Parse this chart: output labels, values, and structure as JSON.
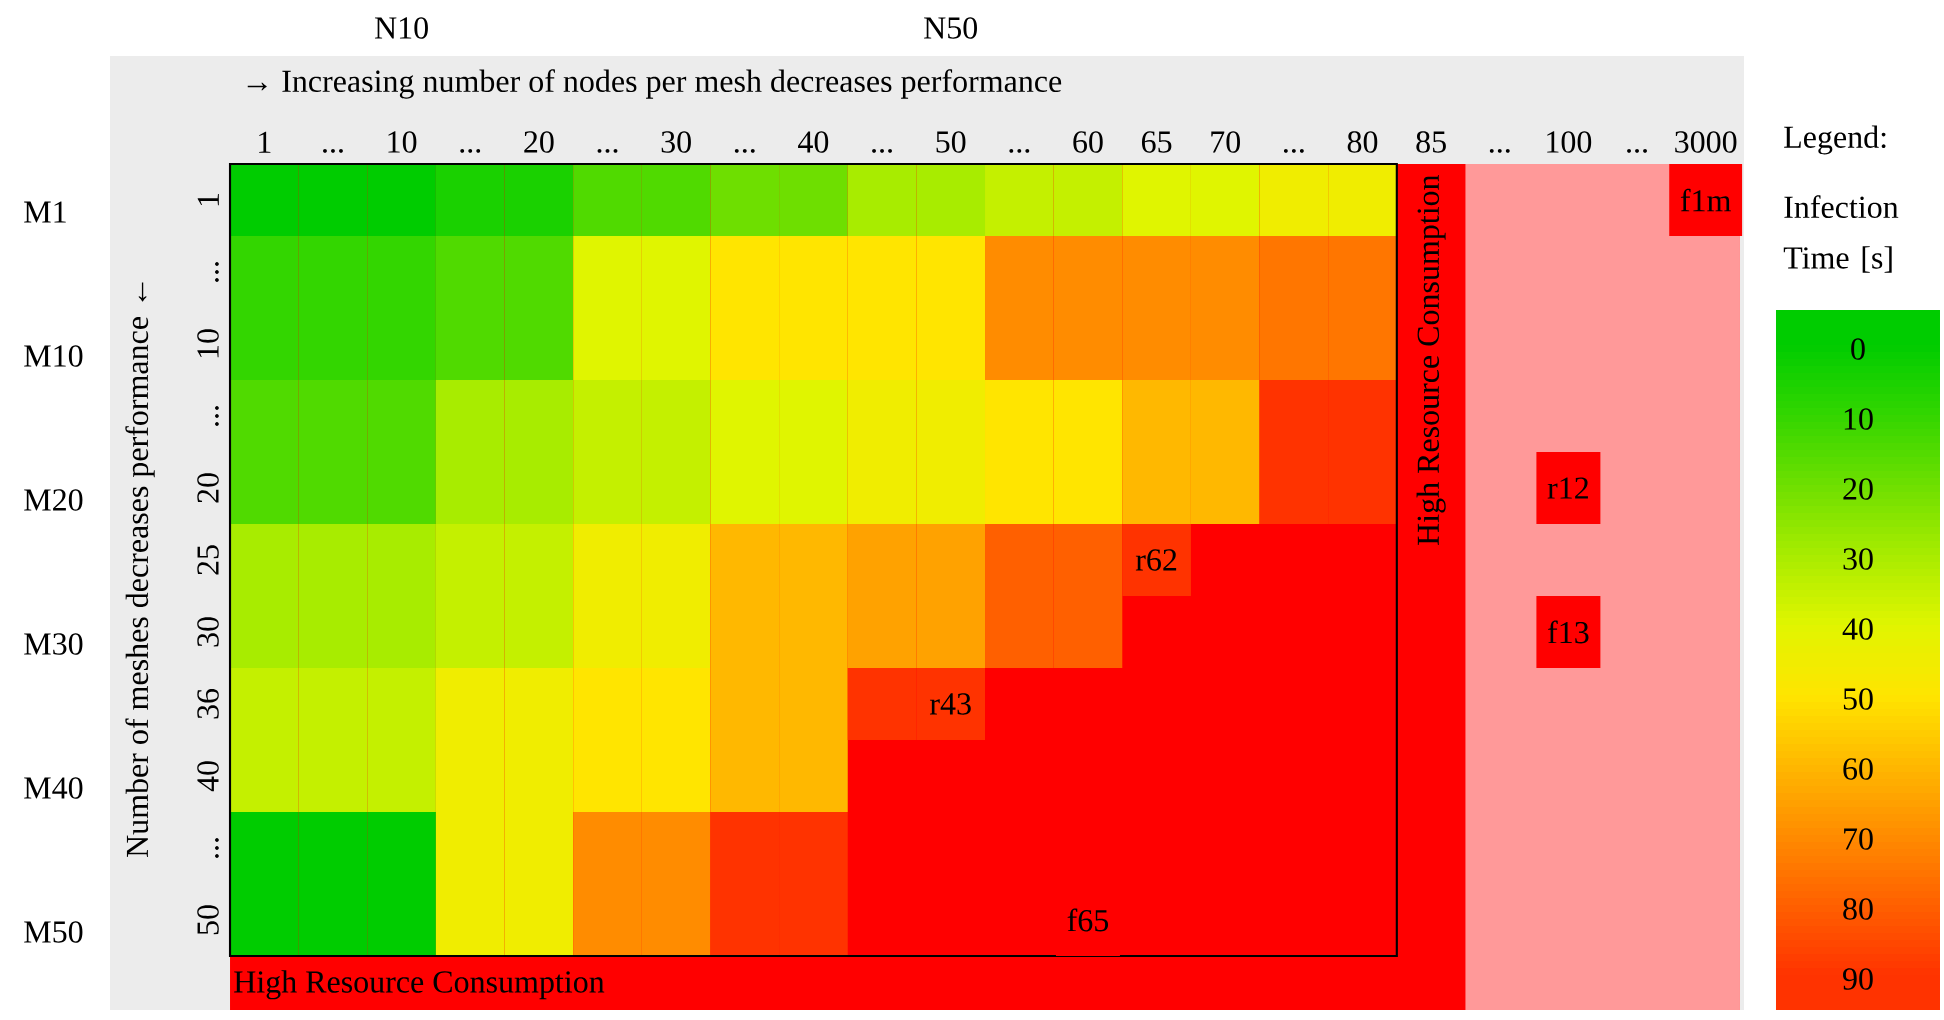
{
  "chart_data": {
    "type": "heatmap",
    "xlabel": "→ Increasing number of nodes per mesh decreases performance",
    "ylabel": "Number of meshes decreases performance ←",
    "legend_title": "Legend:",
    "clabel": "Infection Time [s]",
    "categories": [
      "1",
      "...",
      "10",
      "...",
      "20",
      "...",
      "30",
      "...",
      "40",
      "...",
      "50",
      "...",
      "60",
      "65",
      "70",
      "...",
      "80",
      "85",
      "...",
      "100",
      "...",
      "3000"
    ],
    "y_categories": [
      "1",
      "...",
      "10",
      "...",
      "20",
      "25",
      "30",
      "36",
      "40",
      "...",
      "50"
    ],
    "y2_categories": [
      "M1",
      null,
      "M10",
      null,
      "M20",
      null,
      "M30",
      null,
      "M40",
      null,
      "M50"
    ],
    "cells": [
      [
        0,
        0,
        0,
        5,
        5,
        15,
        15,
        20,
        20,
        30,
        30,
        35,
        35,
        40,
        40,
        45,
        45,
        null,
        null,
        null,
        null,
        null
      ],
      [
        10,
        10,
        10,
        15,
        15,
        40,
        40,
        50,
        50,
        50,
        50,
        70,
        70,
        70,
        70,
        75,
        75,
        null,
        null,
        null,
        null,
        null
      ],
      [
        10,
        10,
        10,
        15,
        15,
        40,
        40,
        50,
        50,
        50,
        50,
        70,
        70,
        70,
        70,
        75,
        75,
        null,
        null,
        null,
        null,
        null
      ],
      [
        15,
        15,
        15,
        30,
        30,
        35,
        35,
        40,
        40,
        45,
        45,
        50,
        50,
        60,
        60,
        90,
        90,
        null,
        null,
        null,
        null,
        null
      ],
      [
        15,
        15,
        15,
        30,
        30,
        35,
        35,
        40,
        40,
        45,
        45,
        50,
        50,
        60,
        60,
        90,
        90,
        null,
        null,
        null,
        null,
        null
      ],
      [
        30,
        30,
        30,
        35,
        35,
        45,
        45,
        60,
        60,
        65,
        65,
        80,
        80,
        90,
        null,
        null,
        null,
        null,
        null,
        null,
        null,
        null
      ],
      [
        30,
        30,
        30,
        35,
        35,
        45,
        45,
        60,
        60,
        65,
        65,
        80,
        80,
        null,
        null,
        null,
        null,
        null,
        null,
        null,
        null,
        null
      ],
      [
        35,
        35,
        35,
        45,
        45,
        50,
        50,
        60,
        60,
        90,
        90,
        null,
        null,
        null,
        null,
        null,
        null,
        null,
        null,
        null,
        null,
        null
      ],
      [
        35,
        35,
        35,
        45,
        45,
        50,
        50,
        60,
        60,
        null,
        null,
        null,
        null,
        null,
        null,
        null,
        null,
        null,
        null,
        null,
        null,
        null
      ],
      [
        0,
        0,
        0,
        45,
        45,
        70,
        70,
        90,
        90,
        null,
        null,
        null,
        null,
        null,
        null,
        null,
        null,
        null,
        null,
        null,
        null,
        null
      ],
      [
        0,
        0,
        0,
        45,
        45,
        70,
        70,
        90,
        90,
        null,
        null,
        null,
        null,
        null,
        null,
        null,
        null,
        null,
        null,
        null,
        null,
        null
      ]
    ],
    "cell_labels": [
      [
        null,
        null,
        null,
        null,
        null,
        null,
        null,
        null,
        null,
        null,
        null,
        null,
        null,
        null,
        null,
        null,
        null,
        null,
        null,
        null,
        null,
        null
      ],
      [
        null,
        null,
        null,
        null,
        null,
        null,
        null,
        null,
        null,
        null,
        null,
        null,
        null,
        null,
        null,
        null,
        null,
        null,
        null,
        null,
        null,
        null
      ],
      [
        null,
        null,
        null,
        null,
        null,
        null,
        null,
        null,
        null,
        null,
        null,
        null,
        null,
        null,
        null,
        null,
        null,
        null,
        null,
        null,
        null,
        null
      ],
      [
        null,
        null,
        null,
        null,
        null,
        null,
        null,
        null,
        null,
        null,
        null,
        null,
        null,
        null,
        null,
        null,
        null,
        null,
        null,
        null,
        null,
        null
      ],
      [
        null,
        null,
        null,
        null,
        null,
        null,
        null,
        null,
        null,
        null,
        null,
        null,
        null,
        null,
        null,
        null,
        null,
        null,
        null,
        null,
        null,
        null
      ],
      [
        null,
        null,
        null,
        null,
        null,
        null,
        null,
        null,
        null,
        null,
        null,
        null,
        null,
        "r62",
        null,
        null,
        null,
        null,
        null,
        null,
        null,
        null
      ],
      [
        null,
        null,
        null,
        null,
        null,
        null,
        null,
        null,
        null,
        null,
        null,
        null,
        null,
        null,
        null,
        null,
        null,
        null,
        null,
        null,
        null,
        null
      ],
      [
        null,
        null,
        null,
        null,
        null,
        null,
        null,
        null,
        null,
        null,
        "r43",
        null,
        null,
        null,
        null,
        null,
        null,
        null,
        null,
        null,
        null,
        null
      ],
      [
        null,
        null,
        null,
        null,
        null,
        null,
        null,
        null,
        null,
        null,
        null,
        null,
        null,
        null,
        null,
        null,
        null,
        null,
        null,
        null,
        null,
        null
      ],
      [
        null,
        null,
        null,
        null,
        null,
        null,
        null,
        null,
        null,
        null,
        null,
        null,
        null,
        null,
        null,
        null,
        null,
        null,
        null,
        null,
        null,
        null
      ],
      [
        null,
        null,
        null,
        null,
        null,
        null,
        null,
        null,
        null,
        null,
        null,
        null,
        null,
        null,
        null,
        null,
        null,
        null,
        null,
        null,
        null,
        null
      ]
    ],
    "clim": [
      -5,
      95
    ],
    "cticks": [
      0,
      10,
      20,
      30,
      40,
      50,
      60,
      70,
      80,
      90
    ],
    "bands": [
      {
        "axis": "x",
        "from": "85",
        "to": "3000",
        "color": "#ff9999"
      }
    ],
    "annotations": [
      "High Resource Consumption",
      "High Resource Consumption",
      "N10",
      "N50",
      {
        "text": "r12",
        "x": "100",
        "y": "20"
      },
      {
        "text": "f13",
        "x": "100",
        "y": "30"
      },
      {
        "text": "f1m",
        "x": "3000",
        "y": "1"
      },
      {
        "text": "f65",
        "x": "60",
        "y": "50"
      }
    ]
  }
}
